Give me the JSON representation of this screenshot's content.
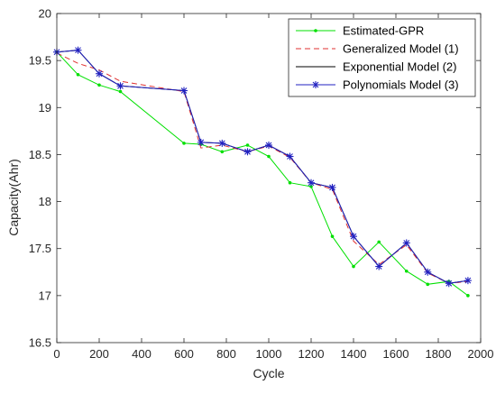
{
  "chart_data": {
    "type": "line",
    "xlabel": "Cycle",
    "ylabel": "Capacity(Ahr)",
    "xlim": [
      0,
      2000
    ],
    "ylim": [
      16.5,
      20
    ],
    "x_ticks": [
      0,
      200,
      400,
      600,
      800,
      1000,
      1200,
      1400,
      1600,
      1800,
      2000
    ],
    "y_ticks": [
      16.5,
      17,
      17.5,
      18,
      18.5,
      19,
      19.5,
      20
    ],
    "x_tick_labels": [
      "0",
      "200",
      "400",
      "600",
      "800",
      "1000",
      "1200",
      "1400",
      "1600",
      "1800",
      "2000"
    ],
    "y_tick_labels": [
      "16.5",
      "17",
      "17.5",
      "18",
      "18.5",
      "19",
      "19.5",
      "20"
    ],
    "grid": false,
    "legend_position": "top-right",
    "series": [
      {
        "name": "Estimated-GPR",
        "color": "#00e000",
        "line_style": "solid",
        "marker": "dot",
        "x": [
          0,
          100,
          200,
          300,
          600,
          680,
          780,
          900,
          1000,
          1100,
          1200,
          1300,
          1400,
          1520,
          1650,
          1750,
          1850,
          1940
        ],
        "y": [
          19.59,
          19.35,
          19.24,
          19.17,
          18.62,
          18.61,
          18.53,
          18.6,
          18.48,
          18.2,
          18.16,
          17.63,
          17.31,
          17.57,
          17.26,
          17.12,
          17.15,
          17.0
        ]
      },
      {
        "name": "Generalized Model (1)",
        "color": "#e03030",
        "line_style": "dashed",
        "marker": "none",
        "x": [
          0,
          100,
          200,
          300,
          600,
          680,
          780,
          900,
          1000,
          1100,
          1200,
          1300,
          1400,
          1520,
          1650,
          1750,
          1850,
          1940
        ],
        "y": [
          19.58,
          19.47,
          19.4,
          19.28,
          19.17,
          18.57,
          18.6,
          18.53,
          18.59,
          18.47,
          18.2,
          18.13,
          17.58,
          17.33,
          17.54,
          17.24,
          17.13,
          17.15
        ]
      },
      {
        "name": "Exponential Model (2)",
        "color": "#000000",
        "line_style": "solid",
        "marker": "none",
        "x": [
          0,
          100,
          200,
          300,
          600,
          680,
          780,
          900,
          1000,
          1100,
          1200,
          1300,
          1400,
          1520,
          1650,
          1750,
          1850,
          1940
        ],
        "y": [
          19.59,
          19.61,
          19.36,
          19.23,
          19.18,
          18.63,
          18.62,
          18.53,
          18.6,
          18.48,
          18.2,
          18.15,
          17.63,
          17.31,
          17.56,
          17.25,
          17.13,
          17.16
        ]
      },
      {
        "name": "Polynomials Model (3)",
        "color": "#2020c0",
        "line_style": "solid",
        "marker": "star",
        "x": [
          0,
          100,
          200,
          300,
          600,
          680,
          780,
          900,
          1000,
          1100,
          1200,
          1300,
          1400,
          1520,
          1650,
          1750,
          1850,
          1940
        ],
        "y": [
          19.59,
          19.61,
          19.36,
          19.23,
          19.18,
          18.63,
          18.62,
          18.53,
          18.6,
          18.48,
          18.2,
          18.15,
          17.63,
          17.31,
          17.56,
          17.25,
          17.13,
          17.16
        ]
      }
    ]
  }
}
